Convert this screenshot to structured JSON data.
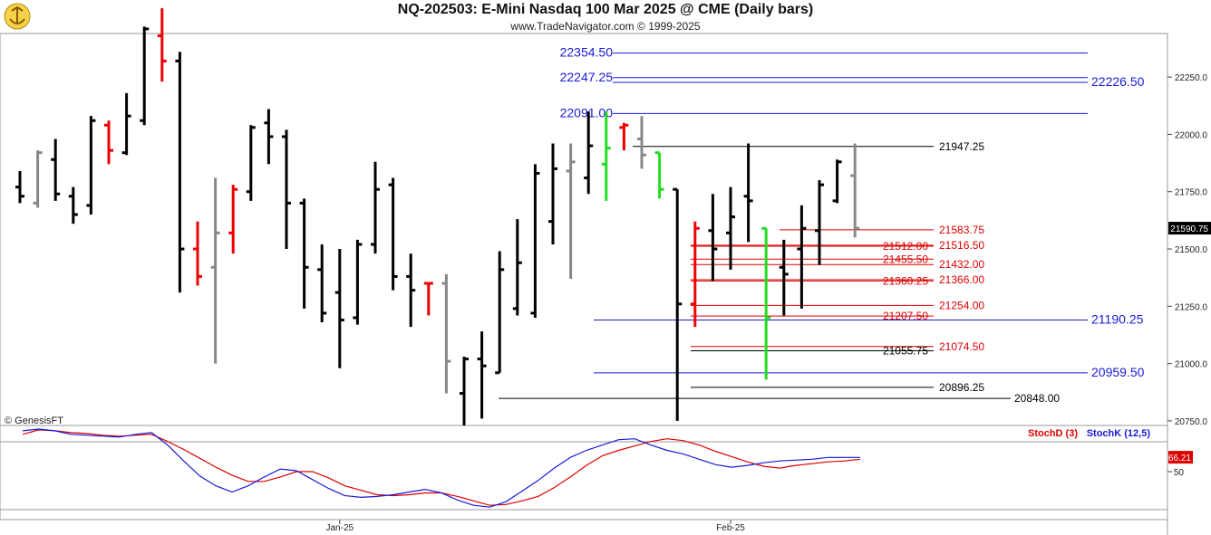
{
  "header": {
    "title": "NQ-202503:  E-Mini Nasdaq 100 Mar 2025 @ CME  (Daily bars)",
    "subtitle": "www.TradeNavigator.com © 1999-2025",
    "logo_icon": "anchor-trident-logo-icon"
  },
  "colors": {
    "up_bar": "#000000",
    "reversal_red": "#ee0000",
    "reversal_green": "#22dd22",
    "neutral_gray": "#888888",
    "blue_level": "#1a1ad8",
    "red_level": "#dd0000",
    "black_level": "#000000",
    "stoch_d": "#dd0000",
    "stoch_k": "#1a1ad8",
    "price_tag_bg": "#000000",
    "stoch_tag_bg": "#dd0000"
  },
  "chart_data": [
    {
      "type": "ohlc",
      "title": "NQ-202503:  E-Mini Nasdaq 100 Mar 2025 @ CME  (Daily bars)",
      "yaxis_ticks": [
        "22250.0",
        "22000.0",
        "21750.0",
        "21500.0",
        "21250.0",
        "21000.0",
        "20750.0"
      ],
      "ylim": [
        20730,
        22440
      ],
      "last_price": "21590.75",
      "x_tick_labels": [
        {
          "label": "Jan-25",
          "bar_index": 18
        },
        {
          "label": "Feb-25",
          "bar_index": 40
        }
      ],
      "copyright": "© GenesisFT",
      "bars": [
        {
          "o": 21770,
          "h": 21840,
          "l": 21700,
          "c": 21730,
          "color": "black"
        },
        {
          "o": 21700,
          "h": 21930,
          "l": 21680,
          "c": 21920,
          "color": "gray"
        },
        {
          "o": 21890,
          "h": 21980,
          "l": 21710,
          "c": 21740,
          "color": "black"
        },
        {
          "o": 21730,
          "h": 21770,
          "l": 21610,
          "c": 21650,
          "color": "black"
        },
        {
          "o": 21690,
          "h": 22080,
          "l": 21650,
          "c": 22060,
          "color": "black"
        },
        {
          "o": 22040,
          "h": 22060,
          "l": 21870,
          "c": 21930,
          "color": "red"
        },
        {
          "o": 21920,
          "h": 22180,
          "l": 21910,
          "c": 22080,
          "color": "black"
        },
        {
          "o": 22060,
          "h": 22470,
          "l": 22040,
          "c": 22460,
          "color": "black"
        },
        {
          "o": 22430,
          "h": 22550,
          "l": 22230,
          "c": 22320,
          "color": "red"
        },
        {
          "o": 22320,
          "h": 22360,
          "l": 21310,
          "c": 21500,
          "color": "black"
        },
        {
          "o": 21500,
          "h": 21620,
          "l": 21340,
          "c": 21380,
          "color": "red"
        },
        {
          "o": 21420,
          "h": 21810,
          "l": 21000,
          "c": 21570,
          "color": "gray"
        },
        {
          "o": 21570,
          "h": 21780,
          "l": 21480,
          "c": 21760,
          "color": "red"
        },
        {
          "o": 21750,
          "h": 22040,
          "l": 21710,
          "c": 22030,
          "color": "black"
        },
        {
          "o": 22050,
          "h": 22110,
          "l": 21870,
          "c": 21990,
          "color": "black"
        },
        {
          "o": 21990,
          "h": 22020,
          "l": 21500,
          "c": 21700,
          "color": "black"
        },
        {
          "o": 21700,
          "h": 21720,
          "l": 21240,
          "c": 21420,
          "color": "black"
        },
        {
          "o": 21410,
          "h": 21520,
          "l": 21180,
          "c": 21220,
          "color": "black"
        },
        {
          "o": 21310,
          "h": 21500,
          "l": 20980,
          "c": 21190,
          "color": "black"
        },
        {
          "o": 21200,
          "h": 21540,
          "l": 21170,
          "c": 21520,
          "color": "black"
        },
        {
          "o": 21520,
          "h": 21880,
          "l": 21480,
          "c": 21760,
          "color": "black"
        },
        {
          "o": 21780,
          "h": 21810,
          "l": 21320,
          "c": 21380,
          "color": "black"
        },
        {
          "o": 21380,
          "h": 21480,
          "l": 21160,
          "c": 21320,
          "color": "black"
        },
        {
          "o": 21350,
          "h": 21350,
          "l": 21210,
          "c": 21350,
          "color": "red"
        },
        {
          "o": 21350,
          "h": 21390,
          "l": 20870,
          "c": 21010,
          "color": "gray"
        },
        {
          "o": 20870,
          "h": 21030,
          "l": 20730,
          "c": 21020,
          "color": "black"
        },
        {
          "o": 21020,
          "h": 21140,
          "l": 20760,
          "c": 20990,
          "color": "black"
        },
        {
          "o": 20960,
          "h": 21490,
          "l": 20960,
          "c": 21410,
          "color": "black"
        },
        {
          "o": 21240,
          "h": 21630,
          "l": 21210,
          "c": 21440,
          "color": "black"
        },
        {
          "o": 21220,
          "h": 21870,
          "l": 21200,
          "c": 21830,
          "color": "black"
        },
        {
          "o": 21620,
          "h": 21960,
          "l": 21520,
          "c": 21850,
          "color": "black"
        },
        {
          "o": 21840,
          "h": 21960,
          "l": 21370,
          "c": 21880,
          "color": "gray"
        },
        {
          "o": 21810,
          "h": 22100,
          "l": 21740,
          "c": 21950,
          "color": "black"
        },
        {
          "o": 21870,
          "h": 22100,
          "l": 21710,
          "c": 21940,
          "color": "green"
        },
        {
          "o": 22030,
          "h": 22050,
          "l": 21930,
          "c": 22040,
          "color": "red"
        },
        {
          "o": 21980,
          "h": 22080,
          "l": 21850,
          "c": 21910,
          "color": "gray"
        },
        {
          "o": 21920,
          "h": 21920,
          "l": 21720,
          "c": 21760,
          "color": "green"
        },
        {
          "o": 21760,
          "h": 21760,
          "l": 20750,
          "c": 21260,
          "color": "black"
        },
        {
          "o": 21260,
          "h": 21620,
          "l": 21160,
          "c": 21590,
          "color": "red"
        },
        {
          "o": 21580,
          "h": 21740,
          "l": 21360,
          "c": 21500,
          "color": "black"
        },
        {
          "o": 21570,
          "h": 21770,
          "l": 21410,
          "c": 21640,
          "color": "black"
        },
        {
          "o": 21730,
          "h": 21960,
          "l": 21530,
          "c": 21710,
          "color": "black"
        },
        {
          "o": 21590,
          "h": 21590,
          "l": 20930,
          "c": 21200,
          "color": "green"
        },
        {
          "o": 21420,
          "h": 21540,
          "l": 21210,
          "c": 21390,
          "color": "black"
        },
        {
          "o": 21500,
          "h": 21690,
          "l": 21240,
          "c": 21590,
          "color": "black"
        },
        {
          "o": 21580,
          "h": 21800,
          "l": 21430,
          "c": 21780,
          "color": "black"
        },
        {
          "o": 21710,
          "h": 21890,
          "l": 21700,
          "c": 21880,
          "color": "black"
        },
        {
          "o": 21820,
          "h": 21960,
          "l": 21550,
          "c": 21590,
          "color": "gray"
        }
      ],
      "levels": [
        {
          "value": 22354.5,
          "label": "22354.50",
          "color": "blue",
          "label_side": "left"
        },
        {
          "value": 22247.25,
          "label": "22247.25",
          "color": "blue",
          "label_side": "left"
        },
        {
          "value": 22226.5,
          "label": "22226.50",
          "color": "blue",
          "label_side": "right"
        },
        {
          "value": 22091.0,
          "label": "22091.00",
          "color": "blue",
          "label_side": "left"
        },
        {
          "value": 21947.25,
          "label": "21947.25",
          "color": "black",
          "label_side": "right"
        },
        {
          "value": 21583.75,
          "label": "21583.75",
          "color": "red",
          "label_side": "right"
        },
        {
          "value": 21516.5,
          "label": "21516.50",
          "color": "red",
          "label_side": "right"
        },
        {
          "value": 21512.0,
          "label": "21512.00",
          "color": "red",
          "label_side": "mid"
        },
        {
          "value": 21455.5,
          "label": "21455.50",
          "color": "red",
          "label_side": "mid"
        },
        {
          "value": 21432.0,
          "label": "21432.00",
          "color": "red",
          "label_side": "right"
        },
        {
          "value": 21366.0,
          "label": "21366.00",
          "color": "red",
          "label_side": "right"
        },
        {
          "value": 21360.25,
          "label": "21360.25",
          "color": "red",
          "label_side": "mid"
        },
        {
          "value": 21254.0,
          "label": "21254.00",
          "color": "red",
          "label_side": "right"
        },
        {
          "value": 21207.5,
          "label": "21207.50",
          "color": "red",
          "label_side": "mid"
        },
        {
          "value": 21190.25,
          "label": "21190.25",
          "color": "blue",
          "label_side": "right"
        },
        {
          "value": 21074.5,
          "label": "21074.50",
          "color": "red",
          "label_side": "right"
        },
        {
          "value": 21055.75,
          "label": "21055.75",
          "color": "black",
          "label_side": "mid"
        },
        {
          "value": 20959.5,
          "label": "20959.50",
          "color": "blue",
          "label_side": "right"
        },
        {
          "value": 20896.25,
          "label": "20896.25",
          "color": "black",
          "label_side": "right"
        },
        {
          "value": 20848.0,
          "label": "20848.00",
          "color": "black",
          "label_side": "right"
        }
      ]
    },
    {
      "type": "line",
      "yaxis_ticks": [
        "50"
      ],
      "ylim": [
        0,
        100
      ],
      "reference_line": 66.21,
      "last_value": "66.21",
      "series": [
        {
          "name": "StochD (3)",
          "color": "red",
          "values": [
            92,
            97,
            96,
            94,
            93,
            91,
            90,
            91,
            92,
            84,
            75,
            65,
            55,
            46,
            39,
            39,
            44,
            50,
            50,
            43,
            34,
            29,
            24,
            23,
            24,
            26,
            26,
            22,
            17,
            12,
            13,
            17,
            22,
            32,
            44,
            57,
            68,
            74,
            79,
            84,
            87,
            85,
            80,
            73,
            67,
            61,
            56,
            54,
            57,
            59,
            61,
            62,
            64
          ]
        },
        {
          "name": "StochK (12,5)",
          "color": "blue",
          "values": [
            96,
            98,
            96,
            92,
            91,
            90,
            89,
            92,
            94,
            80,
            62,
            45,
            34,
            27,
            34,
            44,
            53,
            51,
            41,
            31,
            23,
            21,
            22,
            24,
            27,
            30,
            26,
            18,
            12,
            10,
            16,
            28,
            40,
            54,
            66,
            74,
            80,
            86,
            87,
            80,
            74,
            70,
            64,
            58,
            55,
            57,
            60,
            62,
            63,
            64,
            66,
            66,
            66
          ]
        }
      ]
    }
  ]
}
